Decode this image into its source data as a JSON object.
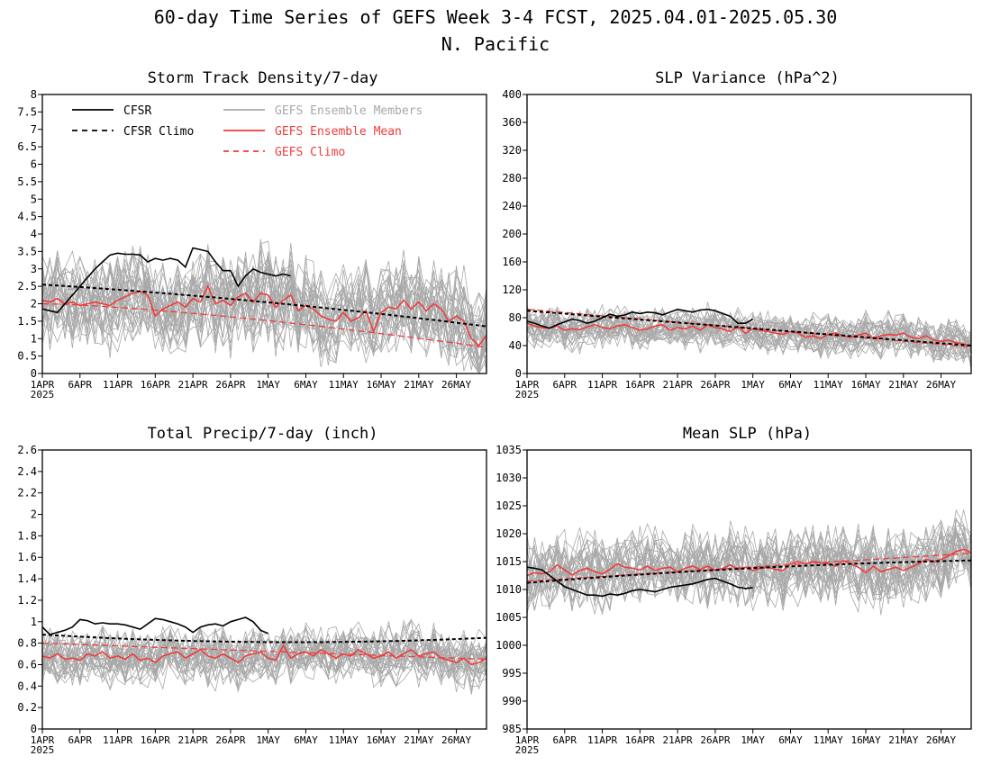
{
  "title_line1": "60-day Time Series of GEFS Week 3-4 FCST, 2025.04.01-2025.05.30",
  "title_line2": "N. Pacific",
  "x_ticks": [
    "1APR",
    "6APR",
    "11APR",
    "16APR",
    "21APR",
    "26APR",
    "1MAY",
    "6MAY",
    "11MAY",
    "16MAY",
    "21MAY",
    "26MAY"
  ],
  "x_year": "2025",
  "legend": {
    "cfsr": "CFSR",
    "cfsr_climo": "CFSR Climo",
    "members": "GEFS Ensemble Members",
    "mean": "GEFS Ensemble Mean",
    "gefs_climo": "GEFS Climo"
  },
  "colors": {
    "cfsr": "#000000",
    "members": "#a8a8a8",
    "mean": "#f03c3c",
    "climo_gefs": "#f03c3c"
  },
  "chart_data": [
    {
      "type": "line",
      "title": "Storm Track Density/7-day",
      "ylim": [
        0,
        8
      ],
      "y_ticks": [
        "0",
        "0.5",
        "1",
        "1.5",
        "2",
        "2.5",
        "3",
        "3.5",
        "4",
        "4.5",
        "5",
        "5.5",
        "6",
        "6.5",
        "7",
        "7.5",
        "8"
      ],
      "series": [
        {
          "name": "CFSR",
          "days": [
            0,
            1,
            2,
            3,
            4,
            5,
            6,
            7,
            8,
            9,
            10,
            11,
            12,
            13,
            14,
            15,
            16,
            17,
            18,
            19,
            20,
            21,
            22,
            23,
            24,
            25,
            26,
            27,
            28,
            29,
            30,
            31,
            32,
            33
          ],
          "values": [
            1.85,
            1.8,
            1.75,
            2.0,
            2.25,
            2.5,
            2.75,
            3.0,
            3.2,
            3.4,
            3.45,
            3.42,
            3.42,
            3.4,
            3.2,
            3.3,
            3.25,
            3.3,
            3.25,
            3.05,
            3.6,
            3.55,
            3.5,
            3.2,
            2.95,
            2.95,
            2.5,
            2.8,
            3.0,
            2.9,
            2.85,
            2.8,
            2.85,
            2.8
          ]
        },
        {
          "name": "CFSR Climo",
          "from": 2.55,
          "mid": 2.05,
          "to": 1.35
        },
        {
          "name": "GEFS Ensemble Mean",
          "values": [
            2.1,
            2.05,
            2.15,
            2.0,
            2.05,
            1.95,
            2.0,
            2.05,
            2.0,
            1.95,
            2.1,
            2.2,
            2.3,
            2.35,
            2.25,
            1.65,
            1.85,
            1.95,
            2.05,
            1.9,
            2.15,
            2.05,
            2.5,
            2.0,
            2.1,
            1.95,
            2.2,
            2.3,
            2.05,
            2.3,
            2.25,
            1.9,
            2.1,
            2.25,
            1.8,
            1.95,
            1.85,
            1.65,
            1.55,
            1.5,
            1.75,
            1.5,
            1.6,
            1.8,
            1.2,
            1.75,
            1.9,
            1.85,
            2.1,
            1.85,
            2.05,
            1.8,
            2.0,
            1.85,
            1.5,
            1.65,
            1.5,
            1.0,
            0.8,
            1.1
          ]
        },
        {
          "name": "GEFS Climo",
          "from": 2.0,
          "to": 0.75
        }
      ]
    },
    {
      "type": "line",
      "title": "SLP Variance (hPa^2)",
      "ylim": [
        0,
        400
      ],
      "y_ticks": [
        "0",
        "40",
        "80",
        "120",
        "160",
        "200",
        "240",
        "280",
        "320",
        "360",
        "400"
      ],
      "series": [
        {
          "name": "CFSR",
          "values": [
            75,
            72,
            68,
            65,
            70,
            74,
            78,
            76,
            72,
            75,
            80,
            85,
            82,
            84,
            88,
            86,
            88,
            87,
            84,
            88,
            92,
            90,
            88,
            91,
            92,
            90,
            86,
            82,
            72,
            72,
            78
          ]
        },
        {
          "name": "CFSR Climo",
          "from": 90,
          "mid": 65,
          "to": 40
        },
        {
          "name": "GEFS Ensemble Mean",
          "values": [
            72,
            68,
            66,
            65,
            68,
            62,
            64,
            63,
            67,
            70,
            66,
            64,
            68,
            70,
            66,
            62,
            64,
            68,
            70,
            62,
            66,
            64,
            68,
            62,
            70,
            66,
            64,
            60,
            68,
            58,
            64,
            62,
            60,
            58,
            56,
            60,
            58,
            52,
            54,
            50,
            56,
            58,
            54,
            52,
            55,
            58,
            50,
            54,
            56,
            55,
            58,
            52,
            50,
            54,
            48,
            46,
            48,
            44,
            42,
            40
          ]
        },
        {
          "name": "GEFS Climo",
          "from": 92,
          "to": 38
        }
      ]
    },
    {
      "type": "line",
      "title": "Total Precip/7-day (inch)",
      "ylim": [
        0,
        2.6
      ],
      "y_ticks": [
        "0",
        "0.2",
        "0.4",
        "0.6",
        "0.8",
        "1",
        "1.2",
        "1.4",
        "1.6",
        "1.8",
        "2",
        "2.2",
        "2.4",
        "2.6"
      ],
      "series": [
        {
          "name": "CFSR",
          "values": [
            0.95,
            0.88,
            0.9,
            0.92,
            0.95,
            1.02,
            1.01,
            0.98,
            0.99,
            0.98,
            0.98,
            0.97,
            0.95,
            0.93,
            0.98,
            1.03,
            1.02,
            1.0,
            0.98,
            0.95,
            0.9,
            0.95,
            0.97,
            0.98,
            0.96,
            1.0,
            1.02,
            1.04,
            1.0,
            0.92,
            0.89
          ]
        },
        {
          "name": "CFSR Climo",
          "from": 0.88,
          "mid": 0.81,
          "to": 0.85
        },
        {
          "name": "GEFS Ensemble Mean",
          "values": [
            0.68,
            0.66,
            0.7,
            0.65,
            0.66,
            0.64,
            0.7,
            0.68,
            0.72,
            0.66,
            0.68,
            0.65,
            0.7,
            0.64,
            0.66,
            0.62,
            0.68,
            0.7,
            0.72,
            0.66,
            0.7,
            0.74,
            0.68,
            0.66,
            0.7,
            0.66,
            0.62,
            0.68,
            0.7,
            0.72,
            0.66,
            0.64,
            0.78,
            0.66,
            0.7,
            0.72,
            0.68,
            0.74,
            0.7,
            0.66,
            0.7,
            0.68,
            0.74,
            0.7,
            0.66,
            0.68,
            0.72,
            0.66,
            0.7,
            0.74,
            0.68,
            0.7,
            0.72,
            0.66,
            0.64,
            0.62,
            0.66,
            0.6,
            0.62,
            0.66
          ]
        },
        {
          "name": "GEFS Climo",
          "from": 0.8,
          "to": 0.65
        }
      ]
    },
    {
      "type": "line",
      "title": "Mean SLP (hPa)",
      "ylim": [
        985,
        1035
      ],
      "y_ticks": [
        "985",
        "990",
        "995",
        "1000",
        "1005",
        "1010",
        "1015",
        "1020",
        "1025",
        "1030",
        "1035"
      ],
      "series": [
        {
          "name": "CFSR",
          "values": [
            1014,
            1013.8,
            1013.5,
            1012.5,
            1011.5,
            1010.5,
            1010,
            1009.5,
            1009,
            1009,
            1008.8,
            1009.2,
            1009,
            1009.3,
            1009.8,
            1010,
            1009.8,
            1009.6,
            1010,
            1010.4,
            1010.6,
            1010.8,
            1011,
            1011.4,
            1011.8,
            1012,
            1011.5,
            1011,
            1010.4,
            1010.2,
            1010.3
          ]
        },
        {
          "name": "CFSR Climo",
          "from": 1011.2,
          "mid": 1013.8,
          "to": 1015.2
        },
        {
          "name": "GEFS Ensemble Mean",
          "values": [
            1012.5,
            1013,
            1012.8,
            1013.2,
            1014.4,
            1013.5,
            1012.6,
            1013.4,
            1013.8,
            1013.2,
            1012.8,
            1013.6,
            1014.6,
            1014,
            1013.8,
            1013.5,
            1014.2,
            1013.4,
            1013.8,
            1014,
            1013.2,
            1013.8,
            1014.2,
            1013.6,
            1014.2,
            1013.4,
            1013.8,
            1014.4,
            1013.6,
            1014,
            1013.4,
            1013.8,
            1014,
            1013.6,
            1013.4,
            1014.6,
            1015,
            1014.6,
            1015,
            1014.8,
            1014.6,
            1014.2,
            1015.2,
            1014.6,
            1014,
            1013,
            1014.2,
            1013.2,
            1013.6,
            1014,
            1013.4,
            1014,
            1014.6,
            1015.4,
            1015,
            1015.4,
            1016,
            1016.8,
            1017.2,
            1016.6
          ]
        },
        {
          "name": "GEFS Climo",
          "from": 1011.5,
          "to": 1016.5
        }
      ]
    }
  ]
}
